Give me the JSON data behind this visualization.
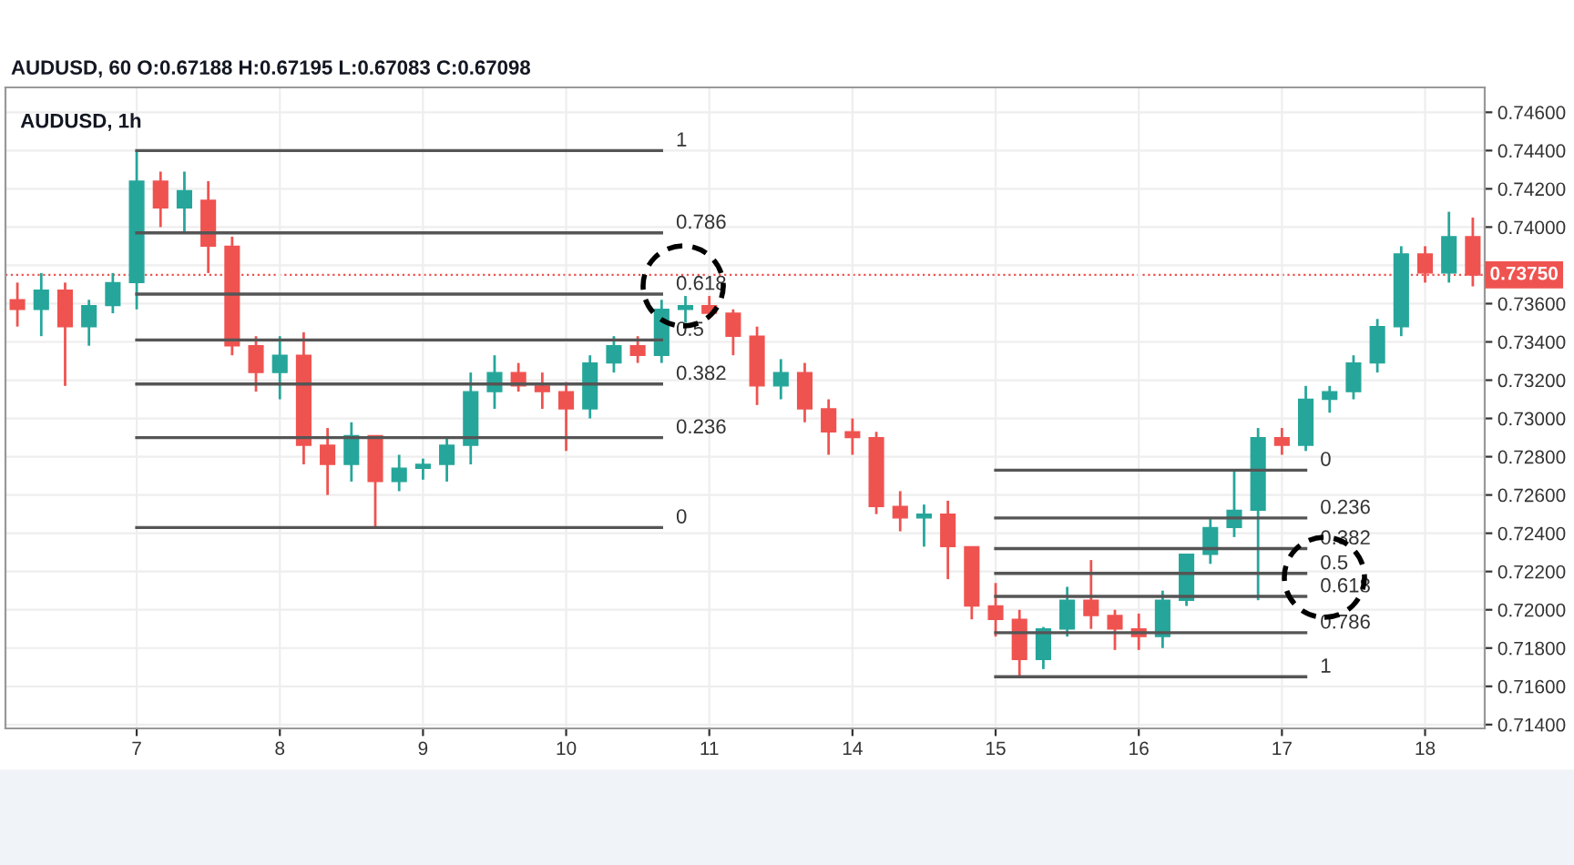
{
  "chart_data": {
    "type": "candlestick",
    "title": "AUDUSD, 60 O:0.67188 H:0.67195 L:0.67083 C:0.67098",
    "subtitle": "AUDUSD, 1h",
    "categories": [
      null,
      null,
      null,
      null,
      null,
      "7",
      null,
      null,
      null,
      null,
      null,
      "8",
      null,
      null,
      null,
      null,
      null,
      "9",
      null,
      null,
      null,
      null,
      null,
      "10",
      null,
      null,
      null,
      null,
      null,
      "11",
      null,
      null,
      null,
      null,
      null,
      "14",
      null,
      null,
      null,
      null,
      null,
      "15",
      null,
      null,
      null,
      null,
      null,
      "16",
      null,
      null,
      null,
      null,
      null,
      "17",
      null,
      null,
      null,
      null,
      null,
      "18",
      null,
      null
    ],
    "ohlc": [
      [
        0.7362,
        0.7371,
        0.7348,
        0.7357
      ],
      [
        0.7357,
        0.7376,
        0.7343,
        0.7367
      ],
      [
        0.7367,
        0.7371,
        0.7317,
        0.7348
      ],
      [
        0.7348,
        0.7362,
        0.7338,
        0.7359
      ],
      [
        0.7359,
        0.7376,
        0.7355,
        0.7371
      ],
      [
        0.7371,
        0.744,
        0.7357,
        0.7424
      ],
      [
        0.7424,
        0.7429,
        0.74,
        0.741
      ],
      [
        0.741,
        0.7429,
        0.7397,
        0.7419
      ],
      [
        0.7414,
        0.7424,
        0.7376,
        0.739
      ],
      [
        0.739,
        0.7395,
        0.7333,
        0.7338
      ],
      [
        0.7338,
        0.7343,
        0.7314,
        0.7324
      ],
      [
        0.7324,
        0.7343,
        0.731,
        0.7333
      ],
      [
        0.7333,
        0.7345,
        0.7276,
        0.7286
      ],
      [
        0.7286,
        0.7295,
        0.726,
        0.7276
      ],
      [
        0.7276,
        0.7298,
        0.7267,
        0.7291
      ],
      [
        0.7291,
        0.7291,
        0.7243,
        0.7267
      ],
      [
        0.7267,
        0.7281,
        0.7262,
        0.7274
      ],
      [
        0.7274,
        0.7279,
        0.7268,
        0.7276
      ],
      [
        0.7276,
        0.729,
        0.7267,
        0.7286
      ],
      [
        0.7286,
        0.7324,
        0.7276,
        0.7314
      ],
      [
        0.7314,
        0.7333,
        0.7305,
        0.7324
      ],
      [
        0.7324,
        0.7329,
        0.7314,
        0.7317
      ],
      [
        0.7317,
        0.7324,
        0.7305,
        0.7314
      ],
      [
        0.7314,
        0.7319,
        0.7283,
        0.7305
      ],
      [
        0.7305,
        0.7333,
        0.73,
        0.7329
      ],
      [
        0.7329,
        0.7343,
        0.7324,
        0.7338
      ],
      [
        0.7338,
        0.7343,
        0.7329,
        0.7333
      ],
      [
        0.7333,
        0.7362,
        0.7329,
        0.7357
      ],
      [
        0.7357,
        0.7364,
        0.735,
        0.7359
      ],
      [
        0.7359,
        0.7364,
        0.7352,
        0.7355
      ],
      [
        0.7355,
        0.7357,
        0.7333,
        0.7343
      ],
      [
        0.7343,
        0.7348,
        0.7307,
        0.7317
      ],
      [
        0.7317,
        0.7331,
        0.731,
        0.7324
      ],
      [
        0.7324,
        0.7329,
        0.7298,
        0.7305
      ],
      [
        0.7305,
        0.731,
        0.7281,
        0.7293
      ],
      [
        0.7293,
        0.73,
        0.7281,
        0.729
      ],
      [
        0.729,
        0.7293,
        0.725,
        0.7254
      ],
      [
        0.7254,
        0.7262,
        0.7241,
        0.7248
      ],
      [
        0.7248,
        0.7255,
        0.7233,
        0.725
      ],
      [
        0.725,
        0.7257,
        0.7216,
        0.7233
      ],
      [
        0.7233,
        0.7233,
        0.7195,
        0.7202
      ],
      [
        0.7202,
        0.7214,
        0.7186,
        0.7195
      ],
      [
        0.7195,
        0.72,
        0.7165,
        0.7174
      ],
      [
        0.7174,
        0.7191,
        0.7169,
        0.719
      ],
      [
        0.719,
        0.7212,
        0.7186,
        0.7205
      ],
      [
        0.7205,
        0.7226,
        0.719,
        0.7197
      ],
      [
        0.7197,
        0.72,
        0.7179,
        0.719
      ],
      [
        0.719,
        0.7198,
        0.7179,
        0.7186
      ],
      [
        0.7186,
        0.721,
        0.718,
        0.7205
      ],
      [
        0.7205,
        0.7229,
        0.7202,
        0.7229
      ],
      [
        0.7229,
        0.7248,
        0.7224,
        0.7243
      ],
      [
        0.7243,
        0.7273,
        0.7238,
        0.7252
      ],
      [
        0.7252,
        0.7295,
        0.7205,
        0.729
      ],
      [
        0.729,
        0.7295,
        0.7281,
        0.7286
      ],
      [
        0.7286,
        0.7317,
        0.7283,
        0.731
      ],
      [
        0.731,
        0.7317,
        0.7303,
        0.7314
      ],
      [
        0.7314,
        0.7333,
        0.731,
        0.7329
      ],
      [
        0.7329,
        0.7352,
        0.7324,
        0.7348
      ],
      [
        0.7348,
        0.739,
        0.7343,
        0.7386
      ],
      [
        0.7386,
        0.739,
        0.7371,
        0.7376
      ],
      [
        0.7376,
        0.7408,
        0.7371,
        0.7395
      ],
      [
        0.7395,
        0.7405,
        0.7369,
        0.7375
      ]
    ],
    "colors": [
      "#ef5350",
      "#26a69a",
      "#ef5350",
      "#26a69a",
      "#26a69a",
      "#26a69a",
      "#ef5350",
      "#26a69a",
      "#ef5350",
      "#ef5350",
      "#ef5350",
      "#26a69a",
      "#ef5350",
      "#ef5350",
      "#26a69a",
      "#ef5350",
      "#26a69a",
      "#26a69a",
      "#26a69a",
      "#26a69a",
      "#26a69a",
      "#ef5350",
      "#ef5350",
      "#ef5350",
      "#26a69a",
      "#26a69a",
      "#ef5350",
      "#26a69a",
      "#26a69a",
      "#ef5350",
      "#ef5350",
      "#ef5350",
      "#26a69a",
      "#ef5350",
      "#ef5350",
      "#ef5350",
      "#ef5350",
      "#ef5350",
      "#26a69a",
      "#ef5350",
      "#ef5350",
      "#ef5350",
      "#ef5350",
      "#26a69a",
      "#26a69a",
      "#ef5350",
      "#ef5350",
      "#ef5350",
      "#26a69a",
      "#26a69a",
      "#26a69a",
      "#26a69a",
      "#26a69a",
      "#ef5350",
      "#26a69a",
      "#26a69a",
      "#26a69a",
      "#26a69a",
      "#26a69a",
      "#ef5350",
      "#26a69a",
      "#ef5350"
    ],
    "series": [
      {
        "type": "line",
        "name": "1",
        "color": "#555555",
        "values": [
          null,
          null,
          null,
          null,
          null,
          0.744,
          0.744,
          0.744,
          0.744,
          0.744,
          0.744,
          0.744,
          0.744,
          0.744,
          0.744,
          0.744,
          0.744,
          0.744,
          0.744,
          0.744,
          0.744,
          0.744,
          0.744,
          0.744,
          0.744,
          0.744,
          0.744,
          0.744,
          null,
          null,
          null,
          null,
          null,
          null,
          null,
          null,
          null,
          null,
          null,
          null,
          null,
          null,
          null,
          null,
          null,
          null,
          null,
          null,
          null,
          null,
          null,
          null,
          null,
          null,
          null,
          null,
          null,
          null,
          null,
          null,
          null,
          null
        ]
      },
      {
        "type": "line",
        "name": "0.786",
        "color": "#555555",
        "values": [
          null,
          null,
          null,
          null,
          null,
          0.7397,
          0.7397,
          0.7397,
          0.7397,
          0.7397,
          0.7397,
          0.7397,
          0.7397,
          0.7397,
          0.7397,
          0.7397,
          0.7397,
          0.7397,
          0.7397,
          0.7397,
          0.7397,
          0.7397,
          0.7397,
          0.7397,
          0.7397,
          0.7397,
          0.7397,
          0.7397,
          null,
          null,
          null,
          null,
          null,
          null,
          null,
          null,
          null,
          null,
          null,
          null,
          null,
          null,
          null,
          null,
          null,
          null,
          null,
          null,
          null,
          null,
          null,
          null,
          null,
          null,
          null,
          null,
          null,
          null,
          null,
          null,
          null,
          null
        ]
      },
      {
        "type": "line",
        "name": "0.618",
        "color": "#555555",
        "values": [
          null,
          null,
          null,
          null,
          null,
          0.7365,
          0.7365,
          0.7365,
          0.7365,
          0.7365,
          0.7365,
          0.7365,
          0.7365,
          0.7365,
          0.7365,
          0.7365,
          0.7365,
          0.7365,
          0.7365,
          0.7365,
          0.7365,
          0.7365,
          0.7365,
          0.7365,
          0.7365,
          0.7365,
          0.7365,
          0.7365,
          null,
          null,
          null,
          null,
          null,
          null,
          null,
          null,
          null,
          null,
          null,
          null,
          null,
          null,
          null,
          null,
          null,
          null,
          null,
          null,
          null,
          null,
          null,
          null,
          null,
          null,
          null,
          null,
          null,
          null,
          null,
          null,
          null,
          null
        ]
      },
      {
        "type": "line",
        "name": "0.5",
        "color": "#555555",
        "values": [
          null,
          null,
          null,
          null,
          null,
          0.7341,
          0.7341,
          0.7341,
          0.7341,
          0.7341,
          0.7341,
          0.7341,
          0.7341,
          0.7341,
          0.7341,
          0.7341,
          0.7341,
          0.7341,
          0.7341,
          0.7341,
          0.7341,
          0.7341,
          0.7341,
          0.7341,
          0.7341,
          0.7341,
          0.7341,
          0.7341,
          null,
          null,
          null,
          null,
          null,
          null,
          null,
          null,
          null,
          null,
          null,
          null,
          null,
          null,
          null,
          null,
          null,
          null,
          null,
          null,
          null,
          null,
          null,
          null,
          null,
          null,
          null,
          null,
          null,
          null,
          null,
          null,
          null,
          null
        ]
      },
      {
        "type": "line",
        "name": "0.382",
        "color": "#555555",
        "values": [
          null,
          null,
          null,
          null,
          null,
          0.7318,
          0.7318,
          0.7318,
          0.7318,
          0.7318,
          0.7318,
          0.7318,
          0.7318,
          0.7318,
          0.7318,
          0.7318,
          0.7318,
          0.7318,
          0.7318,
          0.7318,
          0.7318,
          0.7318,
          0.7318,
          0.7318,
          0.7318,
          0.7318,
          0.7318,
          0.7318,
          null,
          null,
          null,
          null,
          null,
          null,
          null,
          null,
          null,
          null,
          null,
          null,
          null,
          null,
          null,
          null,
          null,
          null,
          null,
          null,
          null,
          null,
          null,
          null,
          null,
          null,
          null,
          null,
          null,
          null,
          null,
          null,
          null,
          null
        ]
      },
      {
        "type": "line",
        "name": "0.236",
        "color": "#555555",
        "values": [
          null,
          null,
          null,
          null,
          null,
          0.729,
          0.729,
          0.729,
          0.729,
          0.729,
          0.729,
          0.729,
          0.729,
          0.729,
          0.729,
          0.729,
          0.729,
          0.729,
          0.729,
          0.729,
          0.729,
          0.729,
          0.729,
          0.729,
          0.729,
          0.729,
          0.729,
          0.729,
          null,
          null,
          null,
          null,
          null,
          null,
          null,
          null,
          null,
          null,
          null,
          null,
          null,
          null,
          null,
          null,
          null,
          null,
          null,
          null,
          null,
          null,
          null,
          null,
          null,
          null,
          null,
          null,
          null,
          null,
          null,
          null,
          null,
          null
        ]
      },
      {
        "type": "line",
        "name": "0",
        "color": "#555555",
        "values": [
          null,
          null,
          null,
          null,
          null,
          0.7243,
          0.7243,
          0.7243,
          0.7243,
          0.7243,
          0.7243,
          0.7243,
          0.7243,
          0.7243,
          0.7243,
          0.7243,
          0.7243,
          0.7243,
          0.7243,
          0.7243,
          0.7243,
          0.7243,
          0.7243,
          0.7243,
          0.7243,
          0.7243,
          0.7243,
          0.7243,
          null,
          null,
          null,
          null,
          null,
          null,
          null,
          null,
          null,
          null,
          null,
          null,
          null,
          null,
          null,
          null,
          null,
          null,
          null,
          null,
          null,
          null,
          null,
          null,
          null,
          null,
          null,
          null,
          null,
          null,
          null,
          null,
          null,
          null
        ]
      },
      {
        "type": "line",
        "name": "0",
        "color": "#555555",
        "values": [
          null,
          null,
          null,
          null,
          null,
          null,
          null,
          null,
          null,
          null,
          null,
          null,
          null,
          null,
          null,
          null,
          null,
          null,
          null,
          null,
          null,
          null,
          null,
          null,
          null,
          null,
          null,
          null,
          null,
          null,
          null,
          null,
          null,
          null,
          null,
          null,
          null,
          null,
          null,
          null,
          null,
          0.7273,
          0.7273,
          0.7273,
          0.7273,
          0.7273,
          0.7273,
          0.7273,
          0.7273,
          0.7273,
          0.7273,
          0.7273,
          0.7273,
          0.7273,
          0.7273,
          null,
          null,
          null,
          null,
          null,
          null,
          null
        ]
      },
      {
        "type": "line",
        "name": "0.236",
        "color": "#555555",
        "values": [
          null,
          null,
          null,
          null,
          null,
          null,
          null,
          null,
          null,
          null,
          null,
          null,
          null,
          null,
          null,
          null,
          null,
          null,
          null,
          null,
          null,
          null,
          null,
          null,
          null,
          null,
          null,
          null,
          null,
          null,
          null,
          null,
          null,
          null,
          null,
          null,
          null,
          null,
          null,
          null,
          null,
          0.7248,
          0.7248,
          0.7248,
          0.7248,
          0.7248,
          0.7248,
          0.7248,
          0.7248,
          0.7248,
          0.7248,
          0.7248,
          0.7248,
          0.7248,
          0.7248,
          null,
          null,
          null,
          null,
          null,
          null,
          null
        ]
      },
      {
        "type": "line",
        "name": "0.382",
        "color": "#555555",
        "values": [
          null,
          null,
          null,
          null,
          null,
          null,
          null,
          null,
          null,
          null,
          null,
          null,
          null,
          null,
          null,
          null,
          null,
          null,
          null,
          null,
          null,
          null,
          null,
          null,
          null,
          null,
          null,
          null,
          null,
          null,
          null,
          null,
          null,
          null,
          null,
          null,
          null,
          null,
          null,
          null,
          null,
          0.7232,
          0.7232,
          0.7232,
          0.7232,
          0.7232,
          0.7232,
          0.7232,
          0.7232,
          0.7232,
          0.7232,
          0.7232,
          0.7232,
          0.7232,
          0.7232,
          null,
          null,
          null,
          null,
          null,
          null,
          null
        ]
      },
      {
        "type": "line",
        "name": "0.5",
        "color": "#555555",
        "values": [
          null,
          null,
          null,
          null,
          null,
          null,
          null,
          null,
          null,
          null,
          null,
          null,
          null,
          null,
          null,
          null,
          null,
          null,
          null,
          null,
          null,
          null,
          null,
          null,
          null,
          null,
          null,
          null,
          null,
          null,
          null,
          null,
          null,
          null,
          null,
          null,
          null,
          null,
          null,
          null,
          null,
          0.7219,
          0.7219,
          0.7219,
          0.7219,
          0.7219,
          0.7219,
          0.7219,
          0.7219,
          0.7219,
          0.7219,
          0.7219,
          0.7219,
          0.7219,
          0.7219,
          null,
          null,
          null,
          null,
          null,
          null,
          null
        ]
      },
      {
        "type": "line",
        "name": "0.618",
        "color": "#555555",
        "values": [
          null,
          null,
          null,
          null,
          null,
          null,
          null,
          null,
          null,
          null,
          null,
          null,
          null,
          null,
          null,
          null,
          null,
          null,
          null,
          null,
          null,
          null,
          null,
          null,
          null,
          null,
          null,
          null,
          null,
          null,
          null,
          null,
          null,
          null,
          null,
          null,
          null,
          null,
          null,
          null,
          null,
          0.7207,
          0.7207,
          0.7207,
          0.7207,
          0.7207,
          0.7207,
          0.7207,
          0.7207,
          0.7207,
          0.7207,
          0.7207,
          0.7207,
          0.7207,
          0.7207,
          null,
          null,
          null,
          null,
          null,
          null,
          null
        ]
      },
      {
        "type": "line",
        "name": "0.786",
        "color": "#555555",
        "values": [
          null,
          null,
          null,
          null,
          null,
          null,
          null,
          null,
          null,
          null,
          null,
          null,
          null,
          null,
          null,
          null,
          null,
          null,
          null,
          null,
          null,
          null,
          null,
          null,
          null,
          null,
          null,
          null,
          null,
          null,
          null,
          null,
          null,
          null,
          null,
          null,
          null,
          null,
          null,
          null,
          null,
          0.7188,
          0.7188,
          0.7188,
          0.7188,
          0.7188,
          0.7188,
          0.7188,
          0.7188,
          0.7188,
          0.7188,
          0.7188,
          0.7188,
          0.7188,
          0.7188,
          null,
          null,
          null,
          null,
          null,
          null,
          null
        ]
      },
      {
        "type": "line",
        "name": "1",
        "color": "#555555",
        "values": [
          null,
          null,
          null,
          null,
          null,
          null,
          null,
          null,
          null,
          null,
          null,
          null,
          null,
          null,
          null,
          null,
          null,
          null,
          null,
          null,
          null,
          null,
          null,
          null,
          null,
          null,
          null,
          null,
          null,
          null,
          null,
          null,
          null,
          null,
          null,
          null,
          null,
          null,
          null,
          null,
          null,
          0.7165,
          0.7165,
          0.7165,
          0.7165,
          0.7165,
          0.7165,
          0.7165,
          0.7165,
          0.7165,
          0.7165,
          0.7165,
          0.7165,
          0.7165,
          0.7165,
          null,
          null,
          null,
          null,
          null,
          null,
          null
        ]
      }
    ],
    "ref_lines": [
      {
        "axis": "y",
        "value": 0.7375,
        "label": "0.73750",
        "color": "#ef5350",
        "line_style": "dotted"
      }
    ],
    "ylim": [
      0.7138,
      0.7473
    ],
    "yticks": [
      {
        "value": 0.714,
        "label": "0.71400"
      },
      {
        "value": 0.716,
        "label": "0.71600"
      },
      {
        "value": 0.718,
        "label": "0.71800"
      },
      {
        "value": 0.72,
        "label": "0.72000"
      },
      {
        "value": 0.722,
        "label": "0.72200"
      },
      {
        "value": 0.724,
        "label": "0.72400"
      },
      {
        "value": 0.726,
        "label": "0.72600"
      },
      {
        "value": 0.728,
        "label": "0.72800"
      },
      {
        "value": 0.73,
        "label": "0.73000"
      },
      {
        "value": 0.732,
        "label": "0.73200"
      },
      {
        "value": 0.734,
        "label": "0.73400"
      },
      {
        "value": 0.736,
        "label": "0.73600"
      },
      {
        "value": 0.738,
        "label": null
      },
      {
        "value": 0.74,
        "label": "0.74000"
      },
      {
        "value": 0.742,
        "label": "0.74200"
      },
      {
        "value": 0.744,
        "label": "0.74400"
      },
      {
        "value": 0.746,
        "label": "0.74600"
      }
    ],
    "grid": true
  }
}
